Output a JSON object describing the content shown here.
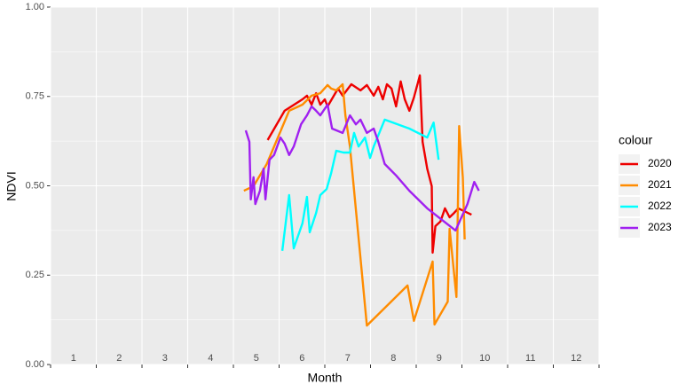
{
  "chart_data": {
    "type": "line",
    "x_label": "Month",
    "y_label": "NDVI",
    "legend_title": "colour",
    "legend": "right",
    "xlim": [
      1,
      13
    ],
    "xticks": [
      {
        "value": 1.5,
        "label": "1"
      },
      {
        "value": 2.5,
        "label": "2"
      },
      {
        "value": 3.5,
        "label": "3"
      },
      {
        "value": 4.5,
        "label": "4"
      },
      {
        "value": 5.5,
        "label": "5"
      },
      {
        "value": 6.5,
        "label": "6"
      },
      {
        "value": 7.5,
        "label": "7"
      },
      {
        "value": 8.5,
        "label": "8"
      },
      {
        "value": 9.5,
        "label": "9"
      },
      {
        "value": 10.5,
        "label": "10"
      },
      {
        "value": 11.5,
        "label": "11"
      },
      {
        "value": 12.5,
        "label": "12"
      }
    ],
    "xgrid": [
      1,
      2,
      3,
      4,
      5,
      6,
      7,
      8,
      9,
      10,
      11,
      12,
      13
    ],
    "ylim": [
      0,
      1
    ],
    "yticks": [
      {
        "value": 0,
        "label": "0.00"
      },
      {
        "value": 0.25,
        "label": "0.25"
      },
      {
        "value": 0.5,
        "label": "0.50"
      },
      {
        "value": 0.75,
        "label": "0.75"
      },
      {
        "value": 1,
        "label": "1.00"
      }
    ],
    "yminor": [
      0.125,
      0.375,
      0.625,
      0.875
    ],
    "grid": true,
    "series": [
      {
        "name": "2020",
        "color": "#ee0000",
        "x": [
          5.75,
          6.12,
          6.51,
          6.61,
          6.71,
          6.81,
          6.9,
          7.0,
          7.06,
          7.29,
          7.39,
          7.58,
          7.78,
          7.92,
          8.07,
          8.17,
          8.27,
          8.36,
          8.46,
          8.56,
          8.66,
          8.75,
          8.85,
          8.95,
          9.08,
          9.14,
          9.24,
          9.34,
          9.36,
          9.42,
          9.53,
          9.63,
          9.73,
          9.83,
          9.92,
          10.21
        ],
        "values": [
          0.628,
          0.71,
          0.742,
          0.752,
          0.727,
          0.759,
          0.727,
          0.742,
          0.722,
          0.772,
          0.752,
          0.784,
          0.767,
          0.782,
          0.752,
          0.777,
          0.742,
          0.784,
          0.772,
          0.722,
          0.792,
          0.742,
          0.71,
          0.747,
          0.809,
          0.623,
          0.548,
          0.499,
          0.313,
          0.387,
          0.4,
          0.437,
          0.412,
          0.424,
          0.437,
          0.419
        ]
      },
      {
        "name": "2021",
        "color": "#ff8c00",
        "x": [
          5.23,
          5.44,
          5.73,
          6.22,
          6.51,
          6.71,
          6.9,
          7.06,
          7.14,
          7.25,
          7.39,
          7.45,
          7.55,
          7.92,
          8.81,
          8.95,
          9.36,
          9.4,
          9.69,
          9.73,
          9.88,
          9.94,
          10.02,
          10.06
        ],
        "values": [
          0.486,
          0.499,
          0.561,
          0.71,
          0.727,
          0.752,
          0.759,
          0.782,
          0.772,
          0.767,
          0.784,
          0.697,
          0.61,
          0.109,
          0.221,
          0.122,
          0.288,
          0.112,
          0.176,
          0.38,
          0.189,
          0.667,
          0.524,
          0.35
        ]
      },
      {
        "name": "2022",
        "color": "#00ffff",
        "x": [
          6.07,
          6.16,
          6.22,
          6.32,
          6.51,
          6.61,
          6.67,
          6.81,
          6.9,
          7.04,
          7.14,
          7.25,
          7.41,
          7.55,
          7.64,
          7.74,
          7.88,
          7.99,
          8.07,
          8.31,
          8.85,
          9.24,
          9.38,
          9.49
        ],
        "values": [
          0.318,
          0.412,
          0.474,
          0.325,
          0.395,
          0.469,
          0.37,
          0.424,
          0.474,
          0.491,
          0.536,
          0.598,
          0.593,
          0.593,
          0.648,
          0.61,
          0.635,
          0.578,
          0.61,
          0.685,
          0.66,
          0.635,
          0.677,
          0.573
        ]
      },
      {
        "name": "2023",
        "color": "#a020f0",
        "x": [
          5.27,
          5.35,
          5.38,
          5.44,
          5.48,
          5.58,
          5.66,
          5.7,
          5.79,
          5.89,
          6.03,
          6.12,
          6.22,
          6.32,
          6.48,
          6.61,
          6.71,
          6.81,
          6.9,
          7.06,
          7.16,
          7.39,
          7.55,
          7.68,
          7.78,
          7.92,
          8.07,
          8.17,
          8.31,
          8.56,
          8.85,
          9.24,
          9.86,
          10.12,
          10.27,
          10.37
        ],
        "values": [
          0.655,
          0.623,
          0.462,
          0.524,
          0.449,
          0.486,
          0.548,
          0.462,
          0.573,
          0.586,
          0.635,
          0.618,
          0.586,
          0.61,
          0.672,
          0.697,
          0.722,
          0.71,
          0.697,
          0.727,
          0.66,
          0.648,
          0.697,
          0.672,
          0.685,
          0.648,
          0.66,
          0.623,
          0.561,
          0.529,
          0.486,
          0.437,
          0.375,
          0.449,
          0.511,
          0.486
        ]
      }
    ]
  }
}
